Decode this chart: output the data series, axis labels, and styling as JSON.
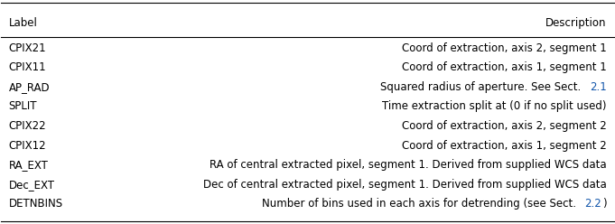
{
  "labels": [
    "CPIX21",
    "CPIX11",
    "AP_RAD",
    "SPLIT",
    "CPIX22",
    "CPIX12",
    "RA_EXT",
    "Dec_EXT",
    "DETNBINS"
  ],
  "descriptions": [
    "Coord of extraction, axis 2, segment 1",
    "Coord of extraction, axis 1, segment 1",
    "Squared radius of aperture. See Sect. 2.1",
    "Time extraction split at (0 if no split used)",
    "Coord of extraction, axis 2, segment 2",
    "Coord of extraction, axis 1, segment 2",
    "RA of central extracted pixel, segment 1. Derived from supplied WCS data",
    "Dec of central extracted pixel, segment 1. Derived from supplied WCS data",
    "Number of bins used in each axis for detrending (see Sect. 2.2)"
  ],
  "link_rows": {
    "2": {
      "prefix": "Squared radius of aperture. See Sect. ",
      "link": "2.1",
      "suffix": ""
    },
    "8": {
      "prefix": "Number of bins used in each axis for detrending (see Sect. ",
      "link": "2.2",
      "suffix": ")"
    }
  },
  "header_label": "Label",
  "header_desc": "Description",
  "font_size": 8.5,
  "fig_width": 6.81,
  "fig_height": 2.48,
  "bg_color": "#ffffff",
  "text_color": "#000000",
  "link_color": "#1155aa",
  "line_color": "#000000"
}
